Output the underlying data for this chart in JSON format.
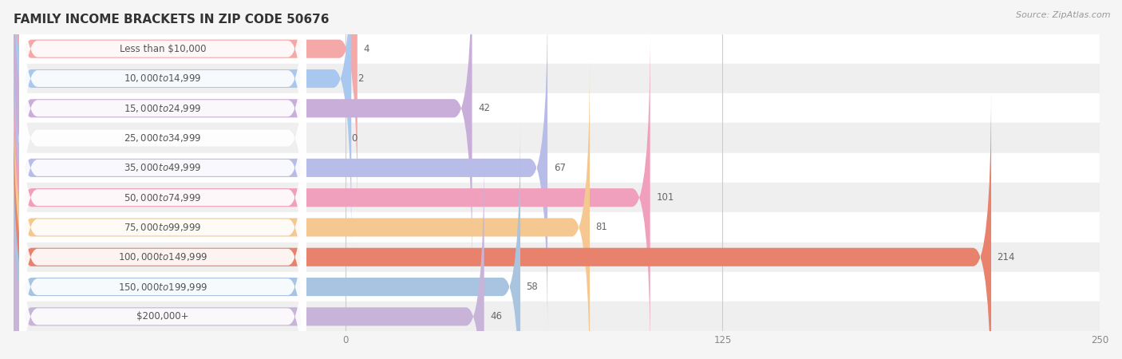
{
  "title": "FAMILY INCOME BRACKETS IN ZIP CODE 50676",
  "source": "Source: ZipAtlas.com",
  "categories": [
    "Less than $10,000",
    "$10,000 to $14,999",
    "$15,000 to $24,999",
    "$25,000 to $34,999",
    "$35,000 to $49,999",
    "$50,000 to $74,999",
    "$75,000 to $99,999",
    "$100,000 to $149,999",
    "$150,000 to $199,999",
    "$200,000+"
  ],
  "values": [
    4,
    2,
    42,
    0,
    67,
    101,
    81,
    214,
    58,
    46
  ],
  "bar_colors": [
    "#f5a8a8",
    "#a8c8f0",
    "#c8aed8",
    "#7ecece",
    "#b8bce8",
    "#f0a0bc",
    "#f4c890",
    "#e8826c",
    "#a8c4e0",
    "#c8b4d8"
  ],
  "xlim_data": 250,
  "xticks": [
    0,
    125,
    250
  ],
  "background_color": "#f5f5f5",
  "row_bg_light": "#ffffff",
  "row_bg_dark": "#efefef",
  "title_fontsize": 11,
  "source_fontsize": 8,
  "label_fontsize": 8.5,
  "value_fontsize": 8.5
}
